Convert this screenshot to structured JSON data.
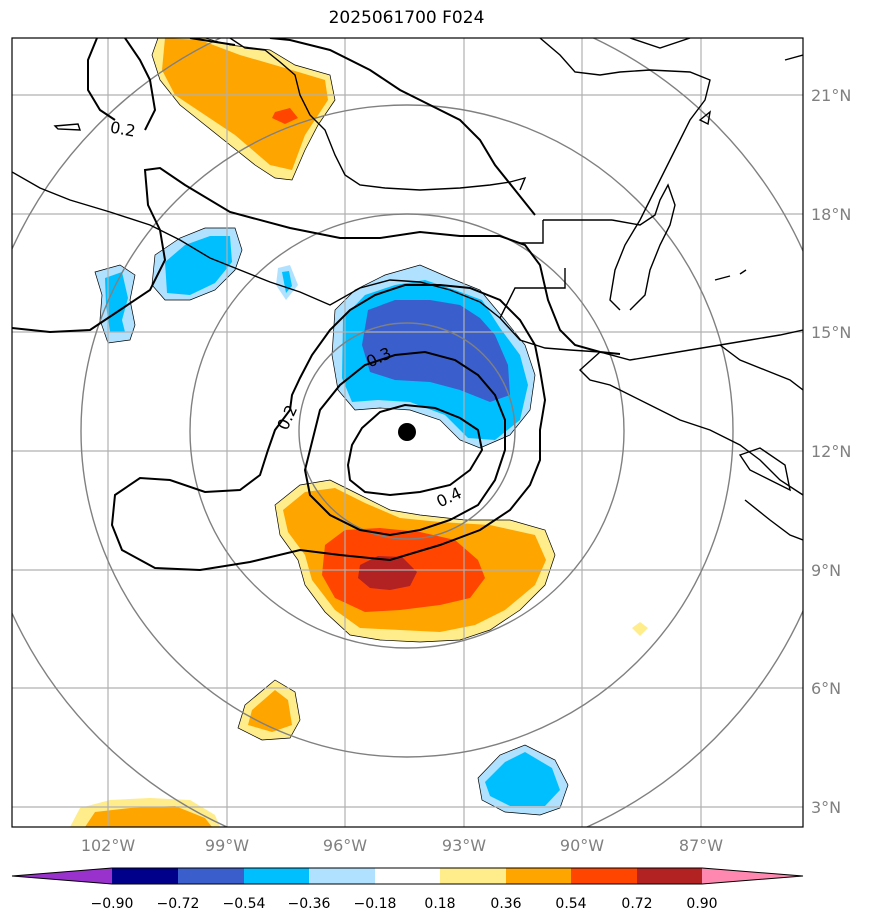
{
  "title": "2025061700 F024",
  "map": {
    "lon_labels": [
      "102°W",
      "99°W",
      "96°W",
      "93°W",
      "90°W",
      "87°W"
    ],
    "lat_labels": [
      "21°N",
      "18°N",
      "15°N",
      "12°N",
      "9°N",
      "6°N",
      "3°N"
    ],
    "storm_center": {
      "lon": -94.5,
      "lat": 12.5
    },
    "contour_labels": [
      "0.2",
      "0.2",
      "0.3",
      "0.4"
    ],
    "colors": {
      "coast": "#000000",
      "grid": "#b0b0b0",
      "range_rings": "#808080"
    }
  },
  "colorbar": {
    "tick_labels": [
      "−0.90",
      "−0.72",
      "−0.54",
      "−0.36",
      "−0.18",
      "0.18",
      "0.36",
      "0.54",
      "0.72",
      "0.90"
    ],
    "bins": [
      "#9932cc",
      "#00008b",
      "#3a5fcd",
      "#00bfff",
      "#b0e2ff",
      "#ffffff",
      "#ffec8b",
      "#ffa500",
      "#ff4500",
      "#b22222",
      "#ff88b0"
    ]
  }
}
